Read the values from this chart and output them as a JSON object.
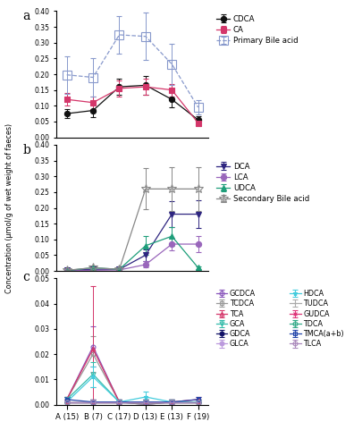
{
  "x_labels": [
    "A (15)",
    "B (7)",
    "C (17)",
    "D (13)",
    "E (13)",
    "F (19)"
  ],
  "x": [
    0,
    1,
    2,
    3,
    4,
    5
  ],
  "panel_a": {
    "CDCA": {
      "y": [
        0.075,
        0.085,
        0.16,
        0.165,
        0.12,
        0.055
      ],
      "yerr": [
        0.015,
        0.02,
        0.025,
        0.03,
        0.025,
        0.012
      ]
    },
    "CA": {
      "y": [
        0.12,
        0.11,
        0.155,
        0.16,
        0.15,
        0.045
      ],
      "yerr": [
        0.02,
        0.02,
        0.025,
        0.025,
        0.02,
        0.01
      ]
    },
    "Primary": {
      "y": [
        0.198,
        0.19,
        0.325,
        0.32,
        0.232,
        0.095
      ],
      "yerr": [
        0.06,
        0.06,
        0.06,
        0.075,
        0.065,
        0.022
      ]
    }
  },
  "panel_b": {
    "DCA": {
      "y": [
        0.002,
        0.005,
        0.005,
        0.05,
        0.18,
        0.18
      ],
      "yerr": [
        0.001,
        0.004,
        0.003,
        0.018,
        0.04,
        0.045
      ]
    },
    "LCA": {
      "y": [
        0.001,
        0.002,
        0.003,
        0.02,
        0.085,
        0.085
      ],
      "yerr": [
        0.001,
        0.002,
        0.002,
        0.01,
        0.02,
        0.025
      ]
    },
    "UDCA": {
      "y": [
        0.001,
        0.01,
        0.005,
        0.08,
        0.11,
        0.01
      ],
      "yerr": [
        0.001,
        0.005,
        0.003,
        0.03,
        0.03,
        0.005
      ]
    },
    "Secondary": {
      "y": [
        0.002,
        0.01,
        0.005,
        0.26,
        0.26,
        0.26
      ],
      "yerr": [
        0.001,
        0.008,
        0.004,
        0.065,
        0.07,
        0.07
      ]
    }
  },
  "panel_c": {
    "GCDCA": {
      "y": [
        0.002,
        0.023,
        0.001,
        0.0,
        0.001,
        0.001
      ],
      "yerr": [
        0.001,
        0.008,
        0.001,
        0.0,
        0.001,
        0.001
      ]
    },
    "TCDCA": {
      "y": [
        0.002,
        0.02,
        0.001,
        0.0,
        0.001,
        0.001
      ],
      "yerr": [
        0.001,
        0.007,
        0.001,
        0.0,
        0.001,
        0.001
      ]
    },
    "TCA": {
      "y": [
        0.002,
        0.022,
        0.001,
        0.001,
        0.001,
        0.002
      ],
      "yerr": [
        0.001,
        0.025,
        0.001,
        0.001,
        0.001,
        0.001
      ]
    },
    "GCA": {
      "y": [
        0.002,
        0.012,
        0.001,
        0.001,
        0.001,
        0.001
      ],
      "yerr": [
        0.001,
        0.005,
        0.001,
        0.001,
        0.001,
        0.001
      ]
    },
    "GDCA": {
      "y": [
        0.001,
        0.001,
        0.001,
        0.001,
        0.001,
        0.001
      ],
      "yerr": [
        0.001,
        0.001,
        0.001,
        0.001,
        0.001,
        0.001
      ]
    },
    "GLCA": {
      "y": [
        0.001,
        0.001,
        0.001,
        0.001,
        0.001,
        0.001
      ],
      "yerr": [
        0.001,
        0.001,
        0.001,
        0.001,
        0.001,
        0.001
      ]
    },
    "HDCA": {
      "y": [
        0.001,
        0.011,
        0.001,
        0.003,
        0.001,
        0.001
      ],
      "yerr": [
        0.001,
        0.004,
        0.001,
        0.002,
        0.001,
        0.001
      ]
    },
    "TUDCA": {
      "y": [
        0.001,
        0.001,
        0.001,
        0.001,
        0.001,
        0.001
      ],
      "yerr": [
        0.001,
        0.001,
        0.001,
        0.001,
        0.001,
        0.001
      ]
    },
    "GUDCA": {
      "y": [
        0.001,
        0.001,
        0.001,
        0.001,
        0.001,
        0.001
      ],
      "yerr": [
        0.001,
        0.001,
        0.001,
        0.001,
        0.001,
        0.001
      ]
    },
    "TDCA": {
      "y": [
        0.001,
        0.001,
        0.001,
        0.001,
        0.001,
        0.001
      ],
      "yerr": [
        0.001,
        0.001,
        0.001,
        0.001,
        0.001,
        0.001
      ]
    },
    "TMCA": {
      "y": [
        0.002,
        0.001,
        0.001,
        0.001,
        0.001,
        0.002
      ],
      "yerr": [
        0.001,
        0.001,
        0.001,
        0.001,
        0.001,
        0.001
      ]
    },
    "TLCA": {
      "y": [
        0.001,
        0.001,
        0.001,
        0.001,
        0.001,
        0.001
      ],
      "yerr": [
        0.001,
        0.001,
        0.001,
        0.001,
        0.001,
        0.001
      ]
    }
  },
  "colors": {
    "CDCA": "#111111",
    "CA": "#d4366a",
    "Primary": "#8899cc",
    "DCA": "#2e2580",
    "LCA": "#9966bb",
    "UDCA": "#1e9e7a",
    "Secondary": "#888888",
    "GCDCA": "#8855bb",
    "TCDCA": "#999999",
    "TCA": "#d4366a",
    "GCA": "#33bbaa",
    "GDCA": "#111166",
    "GLCA": "#bb99dd",
    "HDCA": "#44ccdd",
    "TUDCA": "#aaaaaa",
    "GUDCA": "#dd3377",
    "TDCA": "#33aa88",
    "TMCA": "#2244aa",
    "TLCA": "#aa88bb"
  },
  "panel_a_ylim": [
    0.0,
    0.4
  ],
  "panel_b_ylim": [
    0.0,
    0.4
  ],
  "panel_c_ylim": [
    0.0,
    0.05
  ],
  "ylabel": "Concentration (μmol/g of wet weight of faeces)"
}
